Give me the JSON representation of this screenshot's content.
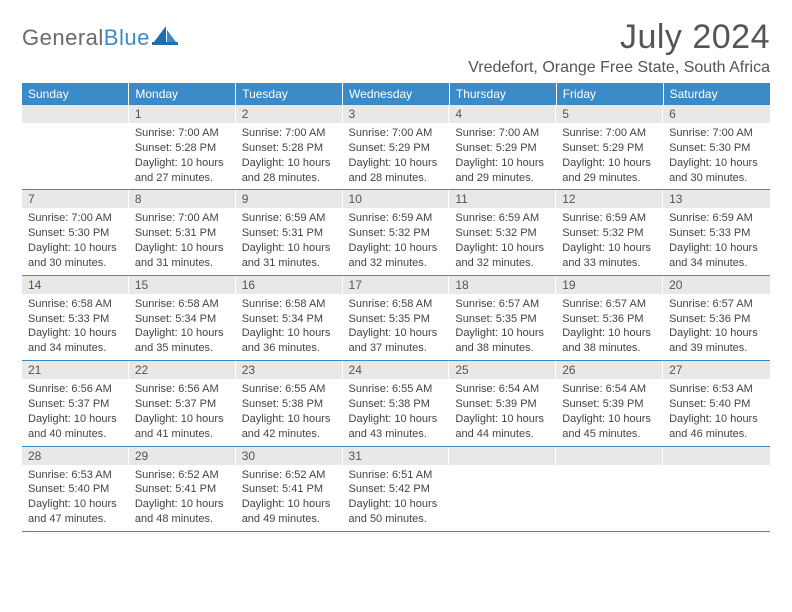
{
  "brand": {
    "general": "General",
    "blue": "Blue"
  },
  "title": "July 2024",
  "location": "Vredefort, Orange Free State, South Africa",
  "colors": {
    "header_bg": "#3b8bc9",
    "header_text": "#ffffff",
    "daynum_bg": "#e8e8e8",
    "row_border": "#3b8bc9",
    "body_text": "#444444",
    "logo_gray": "#6a6a6a",
    "logo_blue": "#3b8bc9"
  },
  "day_headers": [
    "Sunday",
    "Monday",
    "Tuesday",
    "Wednesday",
    "Thursday",
    "Friday",
    "Saturday"
  ],
  "weeks": [
    [
      null,
      {
        "n": "1",
        "sr": "Sunrise: 7:00 AM",
        "ss": "Sunset: 5:28 PM",
        "dl1": "Daylight: 10 hours",
        "dl2": "and 27 minutes."
      },
      {
        "n": "2",
        "sr": "Sunrise: 7:00 AM",
        "ss": "Sunset: 5:28 PM",
        "dl1": "Daylight: 10 hours",
        "dl2": "and 28 minutes."
      },
      {
        "n": "3",
        "sr": "Sunrise: 7:00 AM",
        "ss": "Sunset: 5:29 PM",
        "dl1": "Daylight: 10 hours",
        "dl2": "and 28 minutes."
      },
      {
        "n": "4",
        "sr": "Sunrise: 7:00 AM",
        "ss": "Sunset: 5:29 PM",
        "dl1": "Daylight: 10 hours",
        "dl2": "and 29 minutes."
      },
      {
        "n": "5",
        "sr": "Sunrise: 7:00 AM",
        "ss": "Sunset: 5:29 PM",
        "dl1": "Daylight: 10 hours",
        "dl2": "and 29 minutes."
      },
      {
        "n": "6",
        "sr": "Sunrise: 7:00 AM",
        "ss": "Sunset: 5:30 PM",
        "dl1": "Daylight: 10 hours",
        "dl2": "and 30 minutes."
      }
    ],
    [
      {
        "n": "7",
        "sr": "Sunrise: 7:00 AM",
        "ss": "Sunset: 5:30 PM",
        "dl1": "Daylight: 10 hours",
        "dl2": "and 30 minutes."
      },
      {
        "n": "8",
        "sr": "Sunrise: 7:00 AM",
        "ss": "Sunset: 5:31 PM",
        "dl1": "Daylight: 10 hours",
        "dl2": "and 31 minutes."
      },
      {
        "n": "9",
        "sr": "Sunrise: 6:59 AM",
        "ss": "Sunset: 5:31 PM",
        "dl1": "Daylight: 10 hours",
        "dl2": "and 31 minutes."
      },
      {
        "n": "10",
        "sr": "Sunrise: 6:59 AM",
        "ss": "Sunset: 5:32 PM",
        "dl1": "Daylight: 10 hours",
        "dl2": "and 32 minutes."
      },
      {
        "n": "11",
        "sr": "Sunrise: 6:59 AM",
        "ss": "Sunset: 5:32 PM",
        "dl1": "Daylight: 10 hours",
        "dl2": "and 32 minutes."
      },
      {
        "n": "12",
        "sr": "Sunrise: 6:59 AM",
        "ss": "Sunset: 5:32 PM",
        "dl1": "Daylight: 10 hours",
        "dl2": "and 33 minutes."
      },
      {
        "n": "13",
        "sr": "Sunrise: 6:59 AM",
        "ss": "Sunset: 5:33 PM",
        "dl1": "Daylight: 10 hours",
        "dl2": "and 34 minutes."
      }
    ],
    [
      {
        "n": "14",
        "sr": "Sunrise: 6:58 AM",
        "ss": "Sunset: 5:33 PM",
        "dl1": "Daylight: 10 hours",
        "dl2": "and 34 minutes."
      },
      {
        "n": "15",
        "sr": "Sunrise: 6:58 AM",
        "ss": "Sunset: 5:34 PM",
        "dl1": "Daylight: 10 hours",
        "dl2": "and 35 minutes."
      },
      {
        "n": "16",
        "sr": "Sunrise: 6:58 AM",
        "ss": "Sunset: 5:34 PM",
        "dl1": "Daylight: 10 hours",
        "dl2": "and 36 minutes."
      },
      {
        "n": "17",
        "sr": "Sunrise: 6:58 AM",
        "ss": "Sunset: 5:35 PM",
        "dl1": "Daylight: 10 hours",
        "dl2": "and 37 minutes."
      },
      {
        "n": "18",
        "sr": "Sunrise: 6:57 AM",
        "ss": "Sunset: 5:35 PM",
        "dl1": "Daylight: 10 hours",
        "dl2": "and 38 minutes."
      },
      {
        "n": "19",
        "sr": "Sunrise: 6:57 AM",
        "ss": "Sunset: 5:36 PM",
        "dl1": "Daylight: 10 hours",
        "dl2": "and 38 minutes."
      },
      {
        "n": "20",
        "sr": "Sunrise: 6:57 AM",
        "ss": "Sunset: 5:36 PM",
        "dl1": "Daylight: 10 hours",
        "dl2": "and 39 minutes."
      }
    ],
    [
      {
        "n": "21",
        "sr": "Sunrise: 6:56 AM",
        "ss": "Sunset: 5:37 PM",
        "dl1": "Daylight: 10 hours",
        "dl2": "and 40 minutes."
      },
      {
        "n": "22",
        "sr": "Sunrise: 6:56 AM",
        "ss": "Sunset: 5:37 PM",
        "dl1": "Daylight: 10 hours",
        "dl2": "and 41 minutes."
      },
      {
        "n": "23",
        "sr": "Sunrise: 6:55 AM",
        "ss": "Sunset: 5:38 PM",
        "dl1": "Daylight: 10 hours",
        "dl2": "and 42 minutes."
      },
      {
        "n": "24",
        "sr": "Sunrise: 6:55 AM",
        "ss": "Sunset: 5:38 PM",
        "dl1": "Daylight: 10 hours",
        "dl2": "and 43 minutes."
      },
      {
        "n": "25",
        "sr": "Sunrise: 6:54 AM",
        "ss": "Sunset: 5:39 PM",
        "dl1": "Daylight: 10 hours",
        "dl2": "and 44 minutes."
      },
      {
        "n": "26",
        "sr": "Sunrise: 6:54 AM",
        "ss": "Sunset: 5:39 PM",
        "dl1": "Daylight: 10 hours",
        "dl2": "and 45 minutes."
      },
      {
        "n": "27",
        "sr": "Sunrise: 6:53 AM",
        "ss": "Sunset: 5:40 PM",
        "dl1": "Daylight: 10 hours",
        "dl2": "and 46 minutes."
      }
    ],
    [
      {
        "n": "28",
        "sr": "Sunrise: 6:53 AM",
        "ss": "Sunset: 5:40 PM",
        "dl1": "Daylight: 10 hours",
        "dl2": "and 47 minutes."
      },
      {
        "n": "29",
        "sr": "Sunrise: 6:52 AM",
        "ss": "Sunset: 5:41 PM",
        "dl1": "Daylight: 10 hours",
        "dl2": "and 48 minutes."
      },
      {
        "n": "30",
        "sr": "Sunrise: 6:52 AM",
        "ss": "Sunset: 5:41 PM",
        "dl1": "Daylight: 10 hours",
        "dl2": "and 49 minutes."
      },
      {
        "n": "31",
        "sr": "Sunrise: 6:51 AM",
        "ss": "Sunset: 5:42 PM",
        "dl1": "Daylight: 10 hours",
        "dl2": "and 50 minutes."
      },
      null,
      null,
      null
    ]
  ]
}
